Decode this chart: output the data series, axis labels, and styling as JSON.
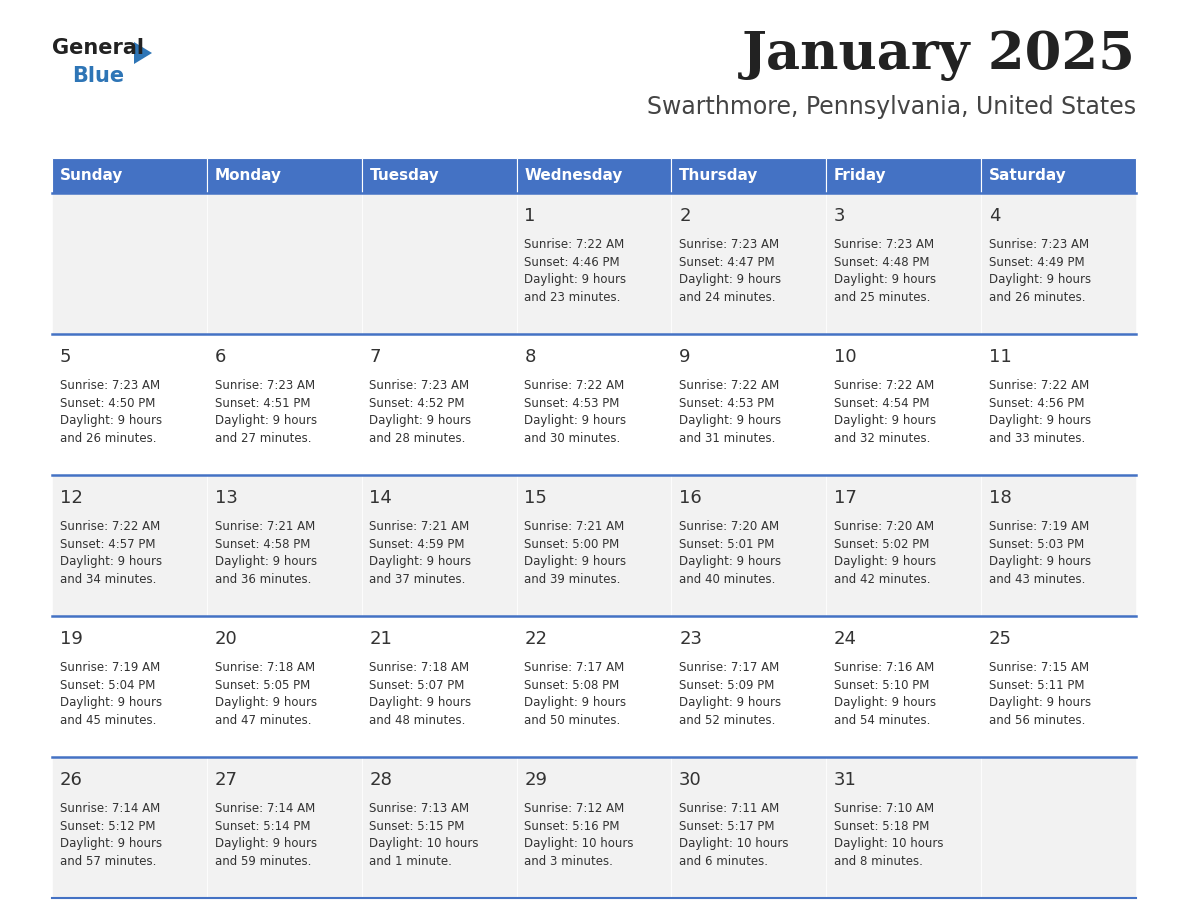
{
  "title": "January 2025",
  "subtitle": "Swarthmore, Pennsylvania, United States",
  "days_of_week": [
    "Sunday",
    "Monday",
    "Tuesday",
    "Wednesday",
    "Thursday",
    "Friday",
    "Saturday"
  ],
  "header_bg": "#4472C4",
  "header_text": "#FFFFFF",
  "row_bg_odd": "#F2F2F2",
  "row_bg_even": "#FFFFFF",
  "cell_text_color": "#333333",
  "day_num_color": "#333333",
  "separator_color": "#4472C4",
  "title_color": "#222222",
  "subtitle_color": "#444444",
  "logo_general_color": "#222222",
  "logo_blue_color": "#2E75B6",
  "weeks": [
    [
      {
        "day": null,
        "info": null
      },
      {
        "day": null,
        "info": null
      },
      {
        "day": null,
        "info": null
      },
      {
        "day": 1,
        "info": "Sunrise: 7:22 AM\nSunset: 4:46 PM\nDaylight: 9 hours\nand 23 minutes."
      },
      {
        "day": 2,
        "info": "Sunrise: 7:23 AM\nSunset: 4:47 PM\nDaylight: 9 hours\nand 24 minutes."
      },
      {
        "day": 3,
        "info": "Sunrise: 7:23 AM\nSunset: 4:48 PM\nDaylight: 9 hours\nand 25 minutes."
      },
      {
        "day": 4,
        "info": "Sunrise: 7:23 AM\nSunset: 4:49 PM\nDaylight: 9 hours\nand 26 minutes."
      }
    ],
    [
      {
        "day": 5,
        "info": "Sunrise: 7:23 AM\nSunset: 4:50 PM\nDaylight: 9 hours\nand 26 minutes."
      },
      {
        "day": 6,
        "info": "Sunrise: 7:23 AM\nSunset: 4:51 PM\nDaylight: 9 hours\nand 27 minutes."
      },
      {
        "day": 7,
        "info": "Sunrise: 7:23 AM\nSunset: 4:52 PM\nDaylight: 9 hours\nand 28 minutes."
      },
      {
        "day": 8,
        "info": "Sunrise: 7:22 AM\nSunset: 4:53 PM\nDaylight: 9 hours\nand 30 minutes."
      },
      {
        "day": 9,
        "info": "Sunrise: 7:22 AM\nSunset: 4:53 PM\nDaylight: 9 hours\nand 31 minutes."
      },
      {
        "day": 10,
        "info": "Sunrise: 7:22 AM\nSunset: 4:54 PM\nDaylight: 9 hours\nand 32 minutes."
      },
      {
        "day": 11,
        "info": "Sunrise: 7:22 AM\nSunset: 4:56 PM\nDaylight: 9 hours\nand 33 minutes."
      }
    ],
    [
      {
        "day": 12,
        "info": "Sunrise: 7:22 AM\nSunset: 4:57 PM\nDaylight: 9 hours\nand 34 minutes."
      },
      {
        "day": 13,
        "info": "Sunrise: 7:21 AM\nSunset: 4:58 PM\nDaylight: 9 hours\nand 36 minutes."
      },
      {
        "day": 14,
        "info": "Sunrise: 7:21 AM\nSunset: 4:59 PM\nDaylight: 9 hours\nand 37 minutes."
      },
      {
        "day": 15,
        "info": "Sunrise: 7:21 AM\nSunset: 5:00 PM\nDaylight: 9 hours\nand 39 minutes."
      },
      {
        "day": 16,
        "info": "Sunrise: 7:20 AM\nSunset: 5:01 PM\nDaylight: 9 hours\nand 40 minutes."
      },
      {
        "day": 17,
        "info": "Sunrise: 7:20 AM\nSunset: 5:02 PM\nDaylight: 9 hours\nand 42 minutes."
      },
      {
        "day": 18,
        "info": "Sunrise: 7:19 AM\nSunset: 5:03 PM\nDaylight: 9 hours\nand 43 minutes."
      }
    ],
    [
      {
        "day": 19,
        "info": "Sunrise: 7:19 AM\nSunset: 5:04 PM\nDaylight: 9 hours\nand 45 minutes."
      },
      {
        "day": 20,
        "info": "Sunrise: 7:18 AM\nSunset: 5:05 PM\nDaylight: 9 hours\nand 47 minutes."
      },
      {
        "day": 21,
        "info": "Sunrise: 7:18 AM\nSunset: 5:07 PM\nDaylight: 9 hours\nand 48 minutes."
      },
      {
        "day": 22,
        "info": "Sunrise: 7:17 AM\nSunset: 5:08 PM\nDaylight: 9 hours\nand 50 minutes."
      },
      {
        "day": 23,
        "info": "Sunrise: 7:17 AM\nSunset: 5:09 PM\nDaylight: 9 hours\nand 52 minutes."
      },
      {
        "day": 24,
        "info": "Sunrise: 7:16 AM\nSunset: 5:10 PM\nDaylight: 9 hours\nand 54 minutes."
      },
      {
        "day": 25,
        "info": "Sunrise: 7:15 AM\nSunset: 5:11 PM\nDaylight: 9 hours\nand 56 minutes."
      }
    ],
    [
      {
        "day": 26,
        "info": "Sunrise: 7:14 AM\nSunset: 5:12 PM\nDaylight: 9 hours\nand 57 minutes."
      },
      {
        "day": 27,
        "info": "Sunrise: 7:14 AM\nSunset: 5:14 PM\nDaylight: 9 hours\nand 59 minutes."
      },
      {
        "day": 28,
        "info": "Sunrise: 7:13 AM\nSunset: 5:15 PM\nDaylight: 10 hours\nand 1 minute."
      },
      {
        "day": 29,
        "info": "Sunrise: 7:12 AM\nSunset: 5:16 PM\nDaylight: 10 hours\nand 3 minutes."
      },
      {
        "day": 30,
        "info": "Sunrise: 7:11 AM\nSunset: 5:17 PM\nDaylight: 10 hours\nand 6 minutes."
      },
      {
        "day": 31,
        "info": "Sunrise: 7:10 AM\nSunset: 5:18 PM\nDaylight: 10 hours\nand 8 minutes."
      },
      {
        "day": null,
        "info": null
      }
    ]
  ],
  "fig_width": 11.88,
  "fig_height": 9.18,
  "dpi": 100
}
